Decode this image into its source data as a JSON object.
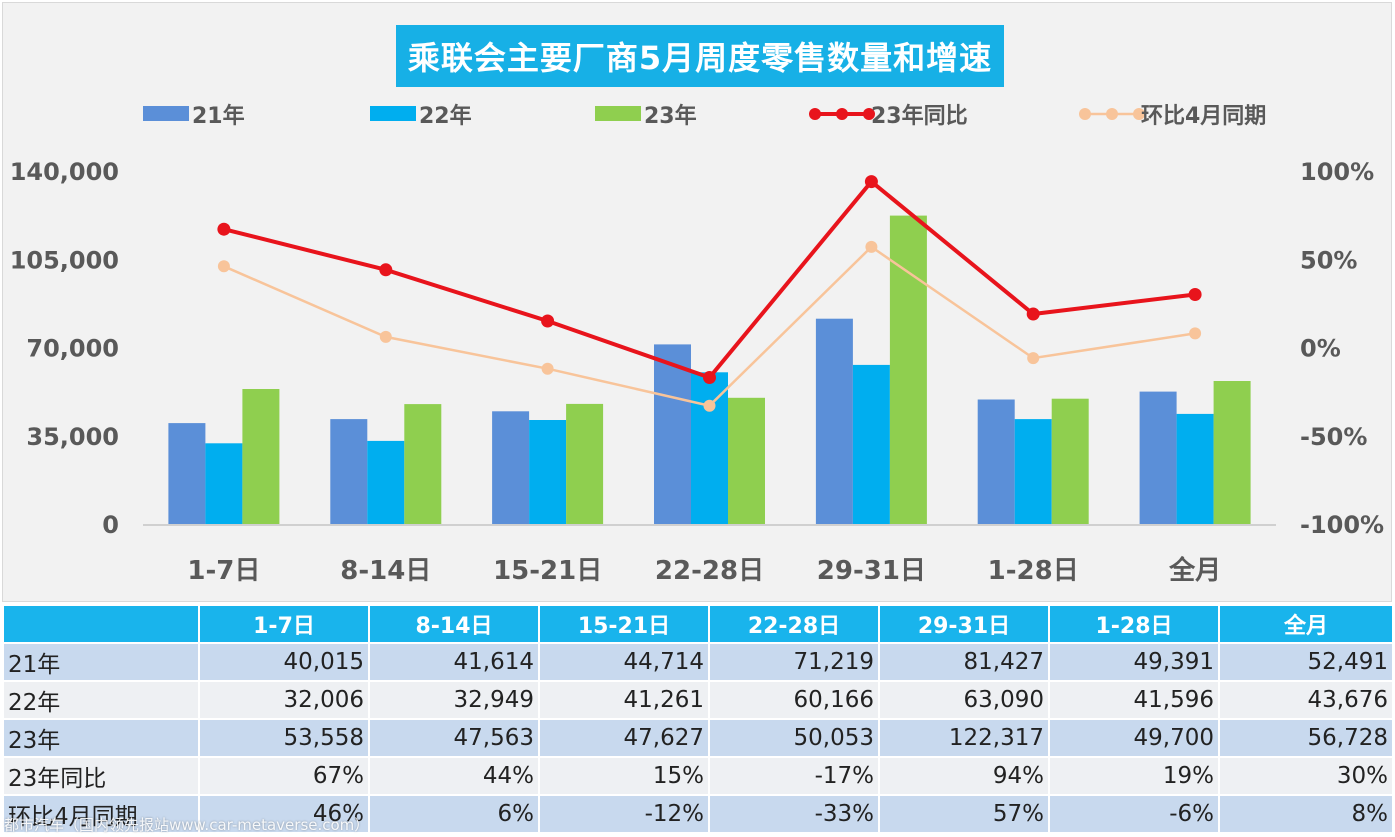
{
  "title": "乘联会主要厂商5月周度零售数量和增速",
  "legend": {
    "items": [
      {
        "label": "21年",
        "color": "#5b8fd8",
        "kind": "bar"
      },
      {
        "label": "22年",
        "color": "#00aeef",
        "kind": "bar"
      },
      {
        "label": "23年",
        "color": "#8fcf4f",
        "kind": "bar"
      },
      {
        "label": "23年同比",
        "color": "#e8141c",
        "kind": "line"
      },
      {
        "label": "环比4月同期",
        "color": "#f8c49a",
        "kind": "line"
      }
    ]
  },
  "chart_data": {
    "type": "bar",
    "categories": [
      "1-7日",
      "8-14日",
      "15-21日",
      "22-28日",
      "29-31日",
      "1-28日",
      "全月"
    ],
    "series": [
      {
        "name": "21年",
        "values": [
          40015,
          41614,
          44714,
          71219,
          81427,
          49391,
          52491
        ],
        "color": "#5b8fd8"
      },
      {
        "name": "22年",
        "values": [
          32006,
          32949,
          41261,
          60166,
          63090,
          41596,
          43676
        ],
        "color": "#00aeef"
      },
      {
        "name": "23年",
        "values": [
          53558,
          47563,
          47627,
          50053,
          122317,
          49700,
          56728
        ],
        "color": "#8fcf4f"
      }
    ],
    "line_series": [
      {
        "name": "23年同比",
        "values": [
          67,
          44,
          15,
          -17,
          94,
          19,
          30
        ],
        "color": "#e8141c",
        "axis": "right"
      },
      {
        "name": "环比4月同期",
        "values": [
          46,
          6,
          -12,
          -33,
          57,
          -6,
          8
        ],
        "color": "#f8c49a",
        "axis": "right"
      }
    ],
    "y_left": {
      "min": 0,
      "max": 140000,
      "ticks": [
        "0",
        "35,000",
        "70,000",
        "105,000",
        "140,000"
      ]
    },
    "y_right": {
      "min": -100,
      "max": 100,
      "ticks": [
        "-100%",
        "-50%",
        "0%",
        "50%",
        "100%"
      ]
    },
    "legend_position": "top",
    "grid": false
  },
  "table": {
    "headers": [
      "",
      "1-7日",
      "8-14日",
      "15-21日",
      "22-28日",
      "29-31日",
      "1-28日",
      "全月"
    ],
    "rows": [
      {
        "label": "21年",
        "cells": [
          "40,015",
          "41,614",
          "44,714",
          "71,219",
          "81,427",
          "49,391",
          "52,491"
        ]
      },
      {
        "label": "22年",
        "cells": [
          "32,006",
          "32,949",
          "41,261",
          "60,166",
          "63,090",
          "41,596",
          "43,676"
        ]
      },
      {
        "label": "23年",
        "cells": [
          "53,558",
          "47,563",
          "47,627",
          "50,053",
          "122,317",
          "49,700",
          "56,728"
        ]
      },
      {
        "label": "23年同比",
        "cells": [
          "67%",
          "44%",
          "15%",
          "-17%",
          "94%",
          "19%",
          "30%"
        ]
      },
      {
        "label": "环比4月同期",
        "cells": [
          "46%",
          "6%",
          "-12%",
          "-33%",
          "57%",
          "-6%",
          "8%"
        ]
      }
    ]
  },
  "watermark": "都市汽车（国内领先报站www.car-metaverse.com）"
}
